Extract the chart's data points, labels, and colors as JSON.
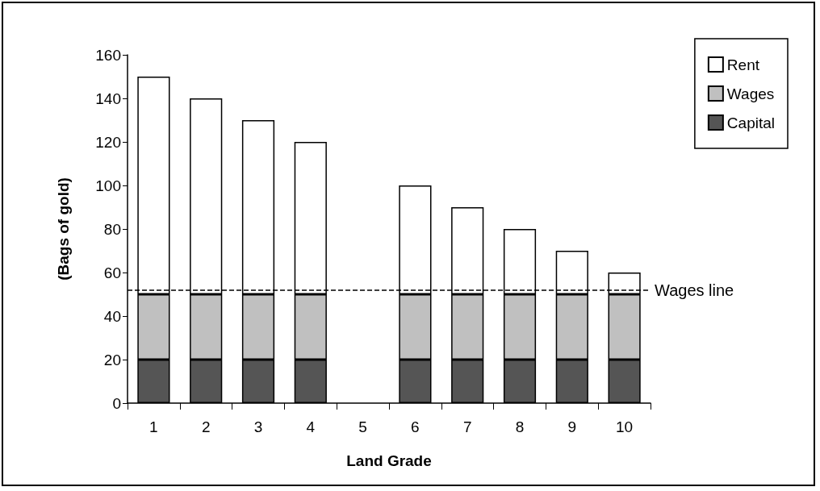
{
  "chart_data": {
    "type": "bar",
    "stacked": true,
    "xlabel": "Land Grade",
    "ylabel": "(Bags of gold)",
    "categories": [
      "1",
      "2",
      "3",
      "4",
      "5",
      "6",
      "7",
      "8",
      "9",
      "10"
    ],
    "series": [
      {
        "name": "Capital",
        "color": "#555555",
        "values": [
          20,
          20,
          20,
          20,
          null,
          20,
          20,
          20,
          20,
          20
        ]
      },
      {
        "name": "Wages",
        "color": "#c0c0c0",
        "values": [
          30,
          30,
          30,
          30,
          null,
          30,
          30,
          30,
          30,
          30
        ]
      },
      {
        "name": "Rent",
        "color": "#ffffff",
        "values": [
          100,
          90,
          80,
          70,
          null,
          50,
          40,
          30,
          20,
          10
        ]
      }
    ],
    "ylim": [
      0,
      160
    ],
    "yticks": [
      0,
      20,
      40,
      60,
      80,
      100,
      120,
      140,
      160
    ],
    "legend": "top right",
    "ref_lines": [
      {
        "axis": "y",
        "value": 52,
        "label": "Wages line",
        "line_style": "dashed",
        "color": "#000000"
      }
    ]
  }
}
